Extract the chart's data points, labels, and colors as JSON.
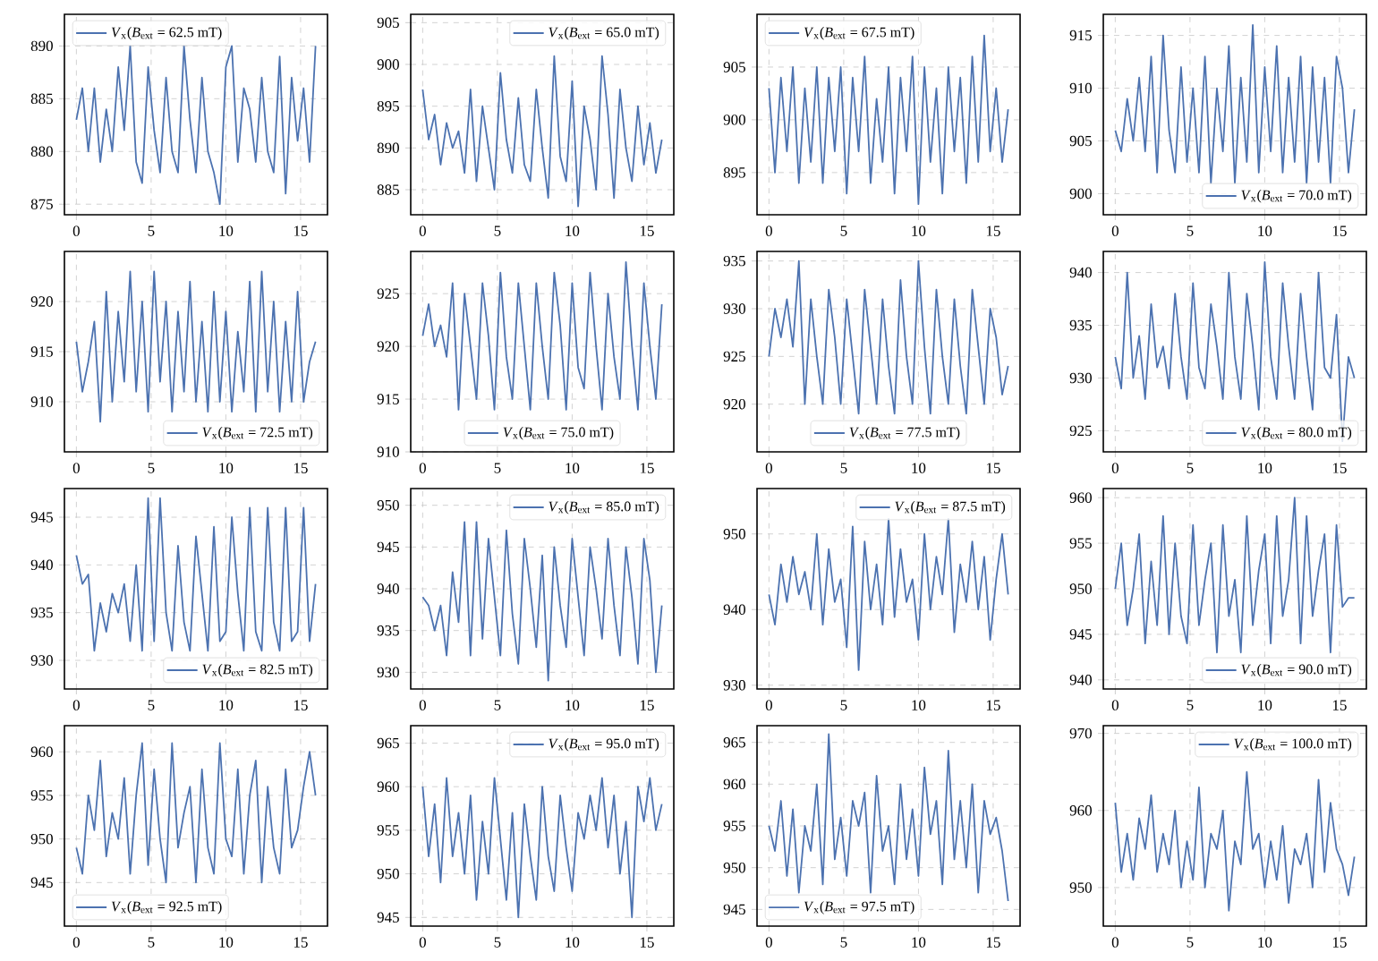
{
  "chart_data": [
    {
      "type": "line",
      "x": [
        0,
        0.4,
        0.8,
        1.2,
        1.6,
        2,
        2.4,
        2.8,
        3.2,
        3.6,
        4,
        4.4,
        4.8,
        5.2,
        5.6,
        6,
        6.4,
        6.8,
        7.2,
        7.6,
        8,
        8.4,
        8.8,
        9.2,
        9.6,
        10,
        10.4,
        10.8,
        11.2,
        11.6,
        12,
        12.4,
        12.8,
        13.2,
        13.6,
        14,
        14.4,
        14.8,
        15.2,
        15.6,
        16
      ],
      "xlim": [
        -0.8,
        16.8
      ],
      "xticks": [
        0,
        5,
        10,
        15
      ],
      "ylim": [
        874,
        893
      ],
      "yticks": [
        875,
        880,
        885,
        890
      ],
      "grid": true,
      "legend": "top left",
      "series": [
        {
          "name": "*V*$_{x}$(*B*$_{ext}$ = 62.5 mT)",
          "color": "#4c72b0",
          "values": [
            883,
            886,
            880,
            886,
            879,
            884,
            880,
            888,
            882,
            890,
            879,
            877,
            888,
            882,
            878,
            887,
            880,
            878,
            890,
            883,
            878,
            887,
            880,
            878,
            875,
            888,
            890,
            879,
            886,
            884,
            879,
            887,
            880,
            878,
            889,
            876,
            887,
            881,
            886,
            879,
            890
          ]
        }
      ]
    },
    {
      "type": "line",
      "x": [
        0,
        0.4,
        0.8,
        1.2,
        1.6,
        2,
        2.4,
        2.8,
        3.2,
        3.6,
        4,
        4.4,
        4.8,
        5.2,
        5.6,
        6,
        6.4,
        6.8,
        7.2,
        7.6,
        8,
        8.4,
        8.8,
        9.2,
        9.6,
        10,
        10.4,
        10.8,
        11.2,
        11.6,
        12,
        12.4,
        12.8,
        13.2,
        13.6,
        14,
        14.4,
        14.8,
        15.2,
        15.6,
        16
      ],
      "xlim": [
        -0.8,
        16.8
      ],
      "xticks": [
        0,
        5,
        10,
        15
      ],
      "ylim": [
        882,
        906
      ],
      "yticks": [
        885,
        890,
        895,
        900,
        905
      ],
      "grid": true,
      "legend": "top right",
      "series": [
        {
          "name": "*V*$_{x}$(*B*$_{ext}$ = 65.0 mT)",
          "color": "#4c72b0",
          "values": [
            897,
            891,
            894,
            888,
            893,
            890,
            892,
            887,
            897,
            886,
            895,
            890,
            885,
            899,
            891,
            887,
            896,
            888,
            886,
            897,
            890,
            884,
            901,
            889,
            886,
            898,
            883,
            895,
            891,
            885,
            901,
            894,
            884,
            897,
            890,
            886,
            895,
            888,
            893,
            887,
            891
          ]
        }
      ]
    },
    {
      "type": "line",
      "x": [
        0,
        0.4,
        0.8,
        1.2,
        1.6,
        2,
        2.4,
        2.8,
        3.2,
        3.6,
        4,
        4.4,
        4.8,
        5.2,
        5.6,
        6,
        6.4,
        6.8,
        7.2,
        7.6,
        8,
        8.4,
        8.8,
        9.2,
        9.6,
        10,
        10.4,
        10.8,
        11.2,
        11.6,
        12,
        12.4,
        12.8,
        13.2,
        13.6,
        14,
        14.4,
        14.8,
        15.2,
        15.6,
        16
      ],
      "xlim": [
        -0.8,
        16.8
      ],
      "xticks": [
        0,
        5,
        10,
        15
      ],
      "ylim": [
        891,
        910
      ],
      "yticks": [
        895,
        900,
        905
      ],
      "grid": true,
      "legend": "top left",
      "series": [
        {
          "name": "*V*$_{x}$(*B*$_{ext}$ = 67.5 mT)",
          "color": "#4c72b0",
          "values": [
            903,
            895,
            904,
            897,
            905,
            894,
            903,
            896,
            905,
            894,
            904,
            897,
            905,
            893,
            904,
            897,
            906,
            894,
            902,
            896,
            905,
            893,
            904,
            897,
            906,
            892,
            905,
            896,
            903,
            893,
            905,
            897,
            904,
            894,
            906,
            896,
            908,
            897,
            903,
            896,
            901
          ]
        }
      ]
    },
    {
      "type": "line",
      "x": [
        0,
        0.4,
        0.8,
        1.2,
        1.6,
        2,
        2.4,
        2.8,
        3.2,
        3.6,
        4,
        4.4,
        4.8,
        5.2,
        5.6,
        6,
        6.4,
        6.8,
        7.2,
        7.6,
        8,
        8.4,
        8.8,
        9.2,
        9.6,
        10,
        10.4,
        10.8,
        11.2,
        11.6,
        12,
        12.4,
        12.8,
        13.2,
        13.6,
        14,
        14.4,
        14.8,
        15.2,
        15.6,
        16
      ],
      "xlim": [
        -0.8,
        16.8
      ],
      "xticks": [
        0,
        5,
        10,
        15
      ],
      "ylim": [
        898,
        917
      ],
      "yticks": [
        900,
        905,
        910,
        915
      ],
      "grid": true,
      "legend": "bottom right",
      "series": [
        {
          "name": "*V*$_{x}$(*B*$_{ext}$ = 70.0 mT)",
          "color": "#4c72b0",
          "values": [
            906,
            904,
            909,
            905,
            911,
            904,
            913,
            902,
            915,
            906,
            902,
            912,
            903,
            910,
            902,
            913,
            901,
            910,
            904,
            914,
            901,
            911,
            903,
            916,
            902,
            912,
            904,
            914,
            902,
            911,
            903,
            913,
            901,
            912,
            903,
            911,
            901,
            913,
            910,
            902,
            908
          ]
        }
      ]
    },
    {
      "type": "line",
      "x": [
        0,
        0.4,
        0.8,
        1.2,
        1.6,
        2,
        2.4,
        2.8,
        3.2,
        3.6,
        4,
        4.4,
        4.8,
        5.2,
        5.6,
        6,
        6.4,
        6.8,
        7.2,
        7.6,
        8,
        8.4,
        8.8,
        9.2,
        9.6,
        10,
        10.4,
        10.8,
        11.2,
        11.6,
        12,
        12.4,
        12.8,
        13.2,
        13.6,
        14,
        14.4,
        14.8,
        15.2,
        15.6,
        16
      ],
      "xlim": [
        -0.8,
        16.8
      ],
      "xticks": [
        0,
        5,
        10,
        15
      ],
      "ylim": [
        905,
        925
      ],
      "yticks": [
        910,
        915,
        920
      ],
      "grid": true,
      "legend": "bottom right",
      "series": [
        {
          "name": "*V*$_{x}$(*B*$_{ext}$ = 72.5 mT)",
          "color": "#4c72b0",
          "values": [
            916,
            911,
            914,
            918,
            908,
            921,
            910,
            919,
            912,
            923,
            911,
            920,
            909,
            923,
            912,
            920,
            909,
            919,
            911,
            922,
            910,
            918,
            909,
            921,
            910,
            919,
            909,
            917,
            911,
            922,
            909,
            923,
            911,
            920,
            909,
            918,
            910,
            921,
            910,
            914,
            916
          ]
        }
      ]
    },
    {
      "type": "line",
      "x": [
        0,
        0.4,
        0.8,
        1.2,
        1.6,
        2,
        2.4,
        2.8,
        3.2,
        3.6,
        4,
        4.4,
        4.8,
        5.2,
        5.6,
        6,
        6.4,
        6.8,
        7.2,
        7.6,
        8,
        8.4,
        8.8,
        9.2,
        9.6,
        10,
        10.4,
        10.8,
        11.2,
        11.6,
        12,
        12.4,
        12.8,
        13.2,
        13.6,
        14,
        14.4,
        14.8,
        15.2,
        15.6,
        16
      ],
      "xlim": [
        -0.8,
        16.8
      ],
      "xticks": [
        0,
        5,
        10,
        15
      ],
      "ylim": [
        910,
        929
      ],
      "yticks": [
        910,
        915,
        920,
        925
      ],
      "grid": true,
      "legend": "bottom",
      "series": [
        {
          "name": "*V*$_{x}$(*B*$_{ext}$ = 75.0 mT)",
          "color": "#4c72b0",
          "values": [
            921,
            924,
            920,
            922,
            919,
            926,
            914,
            925,
            920,
            915,
            926,
            921,
            914,
            927,
            919,
            915,
            926,
            920,
            914,
            926,
            920,
            915,
            927,
            922,
            914,
            926,
            918,
            916,
            927,
            920,
            914,
            925,
            919,
            915,
            928,
            920,
            914,
            926,
            920,
            915,
            924
          ]
        }
      ]
    },
    {
      "type": "line",
      "x": [
        0,
        0.4,
        0.8,
        1.2,
        1.6,
        2,
        2.4,
        2.8,
        3.2,
        3.6,
        4,
        4.4,
        4.8,
        5.2,
        5.6,
        6,
        6.4,
        6.8,
        7.2,
        7.6,
        8,
        8.4,
        8.8,
        9.2,
        9.6,
        10,
        10.4,
        10.8,
        11.2,
        11.6,
        12,
        12.4,
        12.8,
        13.2,
        13.6,
        14,
        14.4,
        14.8,
        15.2,
        15.6,
        16
      ],
      "xlim": [
        -0.8,
        16.8
      ],
      "xticks": [
        0,
        5,
        10,
        15
      ],
      "ylim": [
        915,
        936
      ],
      "yticks": [
        920,
        925,
        930,
        935
      ],
      "grid": true,
      "legend": "bottom",
      "series": [
        {
          "name": "*V*$_{x}$(*B*$_{ext}$ = 77.5 mT)",
          "color": "#4c72b0",
          "values": [
            925,
            930,
            927,
            931,
            926,
            935,
            920,
            931,
            925,
            920,
            932,
            927,
            920,
            931,
            925,
            919,
            932,
            926,
            920,
            931,
            924,
            919,
            933,
            925,
            920,
            935,
            926,
            919,
            932,
            925,
            920,
            931,
            924,
            919,
            932,
            926,
            920,
            930,
            927,
            921,
            924
          ]
        }
      ]
    },
    {
      "type": "line",
      "x": [
        0,
        0.4,
        0.8,
        1.2,
        1.6,
        2,
        2.4,
        2.8,
        3.2,
        3.6,
        4,
        4.4,
        4.8,
        5.2,
        5.6,
        6,
        6.4,
        6.8,
        7.2,
        7.6,
        8,
        8.4,
        8.8,
        9.2,
        9.6,
        10,
        10.4,
        10.8,
        11.2,
        11.6,
        12,
        12.4,
        12.8,
        13.2,
        13.6,
        14,
        14.4,
        14.8,
        15.2,
        15.6,
        16
      ],
      "xlim": [
        -0.8,
        16.8
      ],
      "xticks": [
        0,
        5,
        10,
        15
      ],
      "ylim": [
        923,
        942
      ],
      "yticks": [
        925,
        930,
        935,
        940
      ],
      "grid": true,
      "legend": "bottom right",
      "series": [
        {
          "name": "*V*$_{x}$(*B*$_{ext}$ = 80.0 mT)",
          "color": "#4c72b0",
          "values": [
            932,
            929,
            940,
            930,
            934,
            928,
            937,
            931,
            933,
            929,
            938,
            932,
            928,
            939,
            931,
            929,
            937,
            933,
            928,
            940,
            932,
            928,
            938,
            933,
            927,
            941,
            932,
            928,
            939,
            933,
            928,
            938,
            932,
            927,
            940,
            931,
            930,
            936,
            924,
            932,
            930
          ]
        }
      ]
    },
    {
      "type": "line",
      "x": [
        0,
        0.4,
        0.8,
        1.2,
        1.6,
        2,
        2.4,
        2.8,
        3.2,
        3.6,
        4,
        4.4,
        4.8,
        5.2,
        5.6,
        6,
        6.4,
        6.8,
        7.2,
        7.6,
        8,
        8.4,
        8.8,
        9.2,
        9.6,
        10,
        10.4,
        10.8,
        11.2,
        11.6,
        12,
        12.4,
        12.8,
        13.2,
        13.6,
        14,
        14.4,
        14.8,
        15.2,
        15.6,
        16
      ],
      "xlim": [
        -0.8,
        16.8
      ],
      "xticks": [
        0,
        5,
        10,
        15
      ],
      "ylim": [
        927,
        948
      ],
      "yticks": [
        930,
        935,
        940,
        945
      ],
      "grid": true,
      "legend": "bottom right",
      "series": [
        {
          "name": "*V*$_{x}$(*B*$_{ext}$ = 82.5 mT)",
          "color": "#4c72b0",
          "values": [
            941,
            938,
            939,
            931,
            936,
            933,
            937,
            935,
            938,
            932,
            940,
            931,
            947,
            932,
            947,
            935,
            931,
            942,
            934,
            931,
            943,
            937,
            931,
            944,
            932,
            933,
            945,
            937,
            931,
            946,
            933,
            931,
            946,
            934,
            931,
            946,
            932,
            933,
            946,
            932,
            938
          ]
        }
      ]
    },
    {
      "type": "line",
      "x": [
        0,
        0.4,
        0.8,
        1.2,
        1.6,
        2,
        2.4,
        2.8,
        3.2,
        3.6,
        4,
        4.4,
        4.8,
        5.2,
        5.6,
        6,
        6.4,
        6.8,
        7.2,
        7.6,
        8,
        8.4,
        8.8,
        9.2,
        9.6,
        10,
        10.4,
        10.8,
        11.2,
        11.6,
        12,
        12.4,
        12.8,
        13.2,
        13.6,
        14,
        14.4,
        14.8,
        15.2,
        15.6,
        16
      ],
      "xlim": [
        -0.8,
        16.8
      ],
      "xticks": [
        0,
        5,
        10,
        15
      ],
      "ylim": [
        928,
        952
      ],
      "yticks": [
        930,
        935,
        940,
        945,
        950
      ],
      "grid": true,
      "legend": "top right",
      "series": [
        {
          "name": "*V*$_{x}$(*B*$_{ext}$ = 85.0 mT)",
          "color": "#4c72b0",
          "values": [
            939,
            938,
            935,
            938,
            932,
            942,
            936,
            948,
            932,
            948,
            934,
            946,
            939,
            932,
            947,
            937,
            931,
            946,
            940,
            933,
            944,
            929,
            945,
            938,
            933,
            946,
            939,
            932,
            945,
            940,
            934,
            946,
            938,
            932,
            945,
            939,
            931,
            946,
            941,
            930,
            938
          ]
        }
      ]
    },
    {
      "type": "line",
      "x": [
        0,
        0.4,
        0.8,
        1.2,
        1.6,
        2,
        2.4,
        2.8,
        3.2,
        3.6,
        4,
        4.4,
        4.8,
        5.2,
        5.6,
        6,
        6.4,
        6.8,
        7.2,
        7.6,
        8,
        8.4,
        8.8,
        9.2,
        9.6,
        10,
        10.4,
        10.8,
        11.2,
        11.6,
        12,
        12.4,
        12.8,
        13.2,
        13.6,
        14,
        14.4,
        14.8,
        15.2,
        15.6,
        16
      ],
      "xlim": [
        -0.8,
        16.8
      ],
      "xticks": [
        0,
        5,
        10,
        15
      ],
      "ylim": [
        929.5,
        956
      ],
      "yticks": [
        930,
        940,
        950
      ],
      "grid": true,
      "legend": "top right",
      "series": [
        {
          "name": "*V*$_{x}$(*B*$_{ext}$ = 87.5 mT)",
          "color": "#4c72b0",
          "values": [
            942,
            938,
            946,
            941,
            947,
            942,
            945,
            940,
            950,
            938,
            948,
            941,
            944,
            935,
            951,
            932,
            949,
            940,
            946,
            938,
            952,
            939,
            948,
            941,
            944,
            936,
            950,
            940,
            947,
            942,
            952,
            937,
            946,
            941,
            949,
            940,
            947,
            936,
            944,
            950,
            942
          ]
        }
      ]
    },
    {
      "type": "line",
      "x": [
        0,
        0.4,
        0.8,
        1.2,
        1.6,
        2,
        2.4,
        2.8,
        3.2,
        3.6,
        4,
        4.4,
        4.8,
        5.2,
        5.6,
        6,
        6.4,
        6.8,
        7.2,
        7.6,
        8,
        8.4,
        8.8,
        9.2,
        9.6,
        10,
        10.4,
        10.8,
        11.2,
        11.6,
        12,
        12.4,
        12.8,
        13.2,
        13.6,
        14,
        14.4,
        14.8,
        15.2,
        15.6,
        16
      ],
      "xlim": [
        -0.8,
        16.8
      ],
      "xticks": [
        0,
        5,
        10,
        15
      ],
      "ylim": [
        939,
        961
      ],
      "yticks": [
        940,
        945,
        950,
        955,
        960
      ],
      "grid": true,
      "legend": "bottom right",
      "series": [
        {
          "name": "*V*$_{x}$(*B*$_{ext}$ = 90.0 mT)",
          "color": "#4c72b0",
          "values": [
            950,
            955,
            946,
            950,
            956,
            944,
            953,
            946,
            958,
            945,
            955,
            947,
            944,
            957,
            946,
            951,
            955,
            943,
            957,
            947,
            951,
            943,
            958,
            946,
            952,
            956,
            944,
            958,
            947,
            951,
            960,
            944,
            958,
            947,
            952,
            956,
            943,
            957,
            948,
            949,
            949
          ]
        }
      ]
    },
    {
      "type": "line",
      "x": [
        0,
        0.4,
        0.8,
        1.2,
        1.6,
        2,
        2.4,
        2.8,
        3.2,
        3.6,
        4,
        4.4,
        4.8,
        5.2,
        5.6,
        6,
        6.4,
        6.8,
        7.2,
        7.6,
        8,
        8.4,
        8.8,
        9.2,
        9.6,
        10,
        10.4,
        10.8,
        11.2,
        11.6,
        12,
        12.4,
        12.8,
        13.2,
        13.6,
        14,
        14.4,
        14.8,
        15.2,
        15.6,
        16
      ],
      "xlim": [
        -0.8,
        16.8
      ],
      "xticks": [
        0,
        5,
        10,
        15
      ],
      "ylim": [
        940,
        963
      ],
      "yticks": [
        945,
        950,
        955,
        960
      ],
      "grid": true,
      "legend": "bottom left",
      "series": [
        {
          "name": "*V*$_{x}$(*B*$_{ext}$ = 92.5 mT)",
          "color": "#4c72b0",
          "values": [
            949,
            946,
            955,
            951,
            959,
            948,
            953,
            950,
            957,
            946,
            955,
            961,
            947,
            958,
            950,
            945,
            961,
            949,
            953,
            956,
            945,
            958,
            949,
            946,
            961,
            950,
            948,
            958,
            946,
            955,
            959,
            945,
            956,
            949,
            946,
            958,
            949,
            951,
            956,
            960,
            955
          ]
        }
      ]
    },
    {
      "type": "line",
      "x": [
        0,
        0.4,
        0.8,
        1.2,
        1.6,
        2,
        2.4,
        2.8,
        3.2,
        3.6,
        4,
        4.4,
        4.8,
        5.2,
        5.6,
        6,
        6.4,
        6.8,
        7.2,
        7.6,
        8,
        8.4,
        8.8,
        9.2,
        9.6,
        10,
        10.4,
        10.8,
        11.2,
        11.6,
        12,
        12.4,
        12.8,
        13.2,
        13.6,
        14,
        14.4,
        14.8,
        15.2,
        15.6,
        16
      ],
      "xlim": [
        -0.8,
        16.8
      ],
      "xticks": [
        0,
        5,
        10,
        15
      ],
      "ylim": [
        944,
        967
      ],
      "yticks": [
        945,
        950,
        955,
        960,
        965
      ],
      "grid": true,
      "legend": "top right",
      "series": [
        {
          "name": "*V*$_{x}$(*B*$_{ext}$ = 95.0 mT)",
          "color": "#4c72b0",
          "values": [
            960,
            952,
            958,
            949,
            961,
            952,
            957,
            950,
            959,
            947,
            956,
            950,
            961,
            954,
            947,
            957,
            945,
            958,
            952,
            947,
            960,
            952,
            948,
            959,
            953,
            948,
            957,
            954,
            959,
            955,
            961,
            953,
            959,
            950,
            956,
            945,
            960,
            956,
            961,
            955,
            958
          ]
        }
      ]
    },
    {
      "type": "line",
      "x": [
        0,
        0.4,
        0.8,
        1.2,
        1.6,
        2,
        2.4,
        2.8,
        3.2,
        3.6,
        4,
        4.4,
        4.8,
        5.2,
        5.6,
        6,
        6.4,
        6.8,
        7.2,
        7.6,
        8,
        8.4,
        8.8,
        9.2,
        9.6,
        10,
        10.4,
        10.8,
        11.2,
        11.6,
        12,
        12.4,
        12.8,
        13.2,
        13.6,
        14,
        14.4,
        14.8,
        15.2,
        15.6,
        16
      ],
      "xlim": [
        -0.8,
        16.8
      ],
      "xticks": [
        0,
        5,
        10,
        15
      ],
      "ylim": [
        943,
        967
      ],
      "yticks": [
        945,
        950,
        955,
        960,
        965
      ],
      "grid": true,
      "legend": "bottom left",
      "series": [
        {
          "name": "*V*$_{x}$(*B*$_{ext}$ = 97.5 mT)",
          "color": "#4c72b0",
          "values": [
            955,
            952,
            958,
            949,
            957,
            947,
            955,
            952,
            960,
            948,
            966,
            951,
            956,
            949,
            958,
            955,
            959,
            947,
            961,
            952,
            955,
            948,
            960,
            951,
            957,
            949,
            962,
            954,
            958,
            948,
            964,
            951,
            958,
            950,
            960,
            947,
            958,
            954,
            956,
            952,
            946
          ]
        }
      ]
    },
    {
      "type": "line",
      "x": [
        0,
        0.4,
        0.8,
        1.2,
        1.6,
        2,
        2.4,
        2.8,
        3.2,
        3.6,
        4,
        4.4,
        4.8,
        5.2,
        5.6,
        6,
        6.4,
        6.8,
        7.2,
        7.6,
        8,
        8.4,
        8.8,
        9.2,
        9.6,
        10,
        10.4,
        10.8,
        11.2,
        11.6,
        12,
        12.4,
        12.8,
        13.2,
        13.6,
        14,
        14.4,
        14.8,
        15.2,
        15.6,
        16
      ],
      "xlim": [
        -0.8,
        16.8
      ],
      "xticks": [
        0,
        5,
        10,
        15
      ],
      "ylim": [
        945,
        971
      ],
      "yticks": [
        950,
        960,
        970
      ],
      "grid": true,
      "legend": "top right",
      "series": [
        {
          "name": "*V*$_{x}$(*B*$_{ext}$ = 100.0 mT)",
          "color": "#4c72b0",
          "values": [
            961,
            952,
            957,
            951,
            959,
            955,
            962,
            952,
            957,
            953,
            960,
            950,
            956,
            951,
            963,
            950,
            957,
            955,
            960,
            947,
            956,
            953,
            965,
            955,
            957,
            950,
            956,
            951,
            958,
            948,
            955,
            953,
            957,
            950,
            964,
            952,
            961,
            955,
            953,
            949,
            954
          ]
        }
      ]
    }
  ]
}
